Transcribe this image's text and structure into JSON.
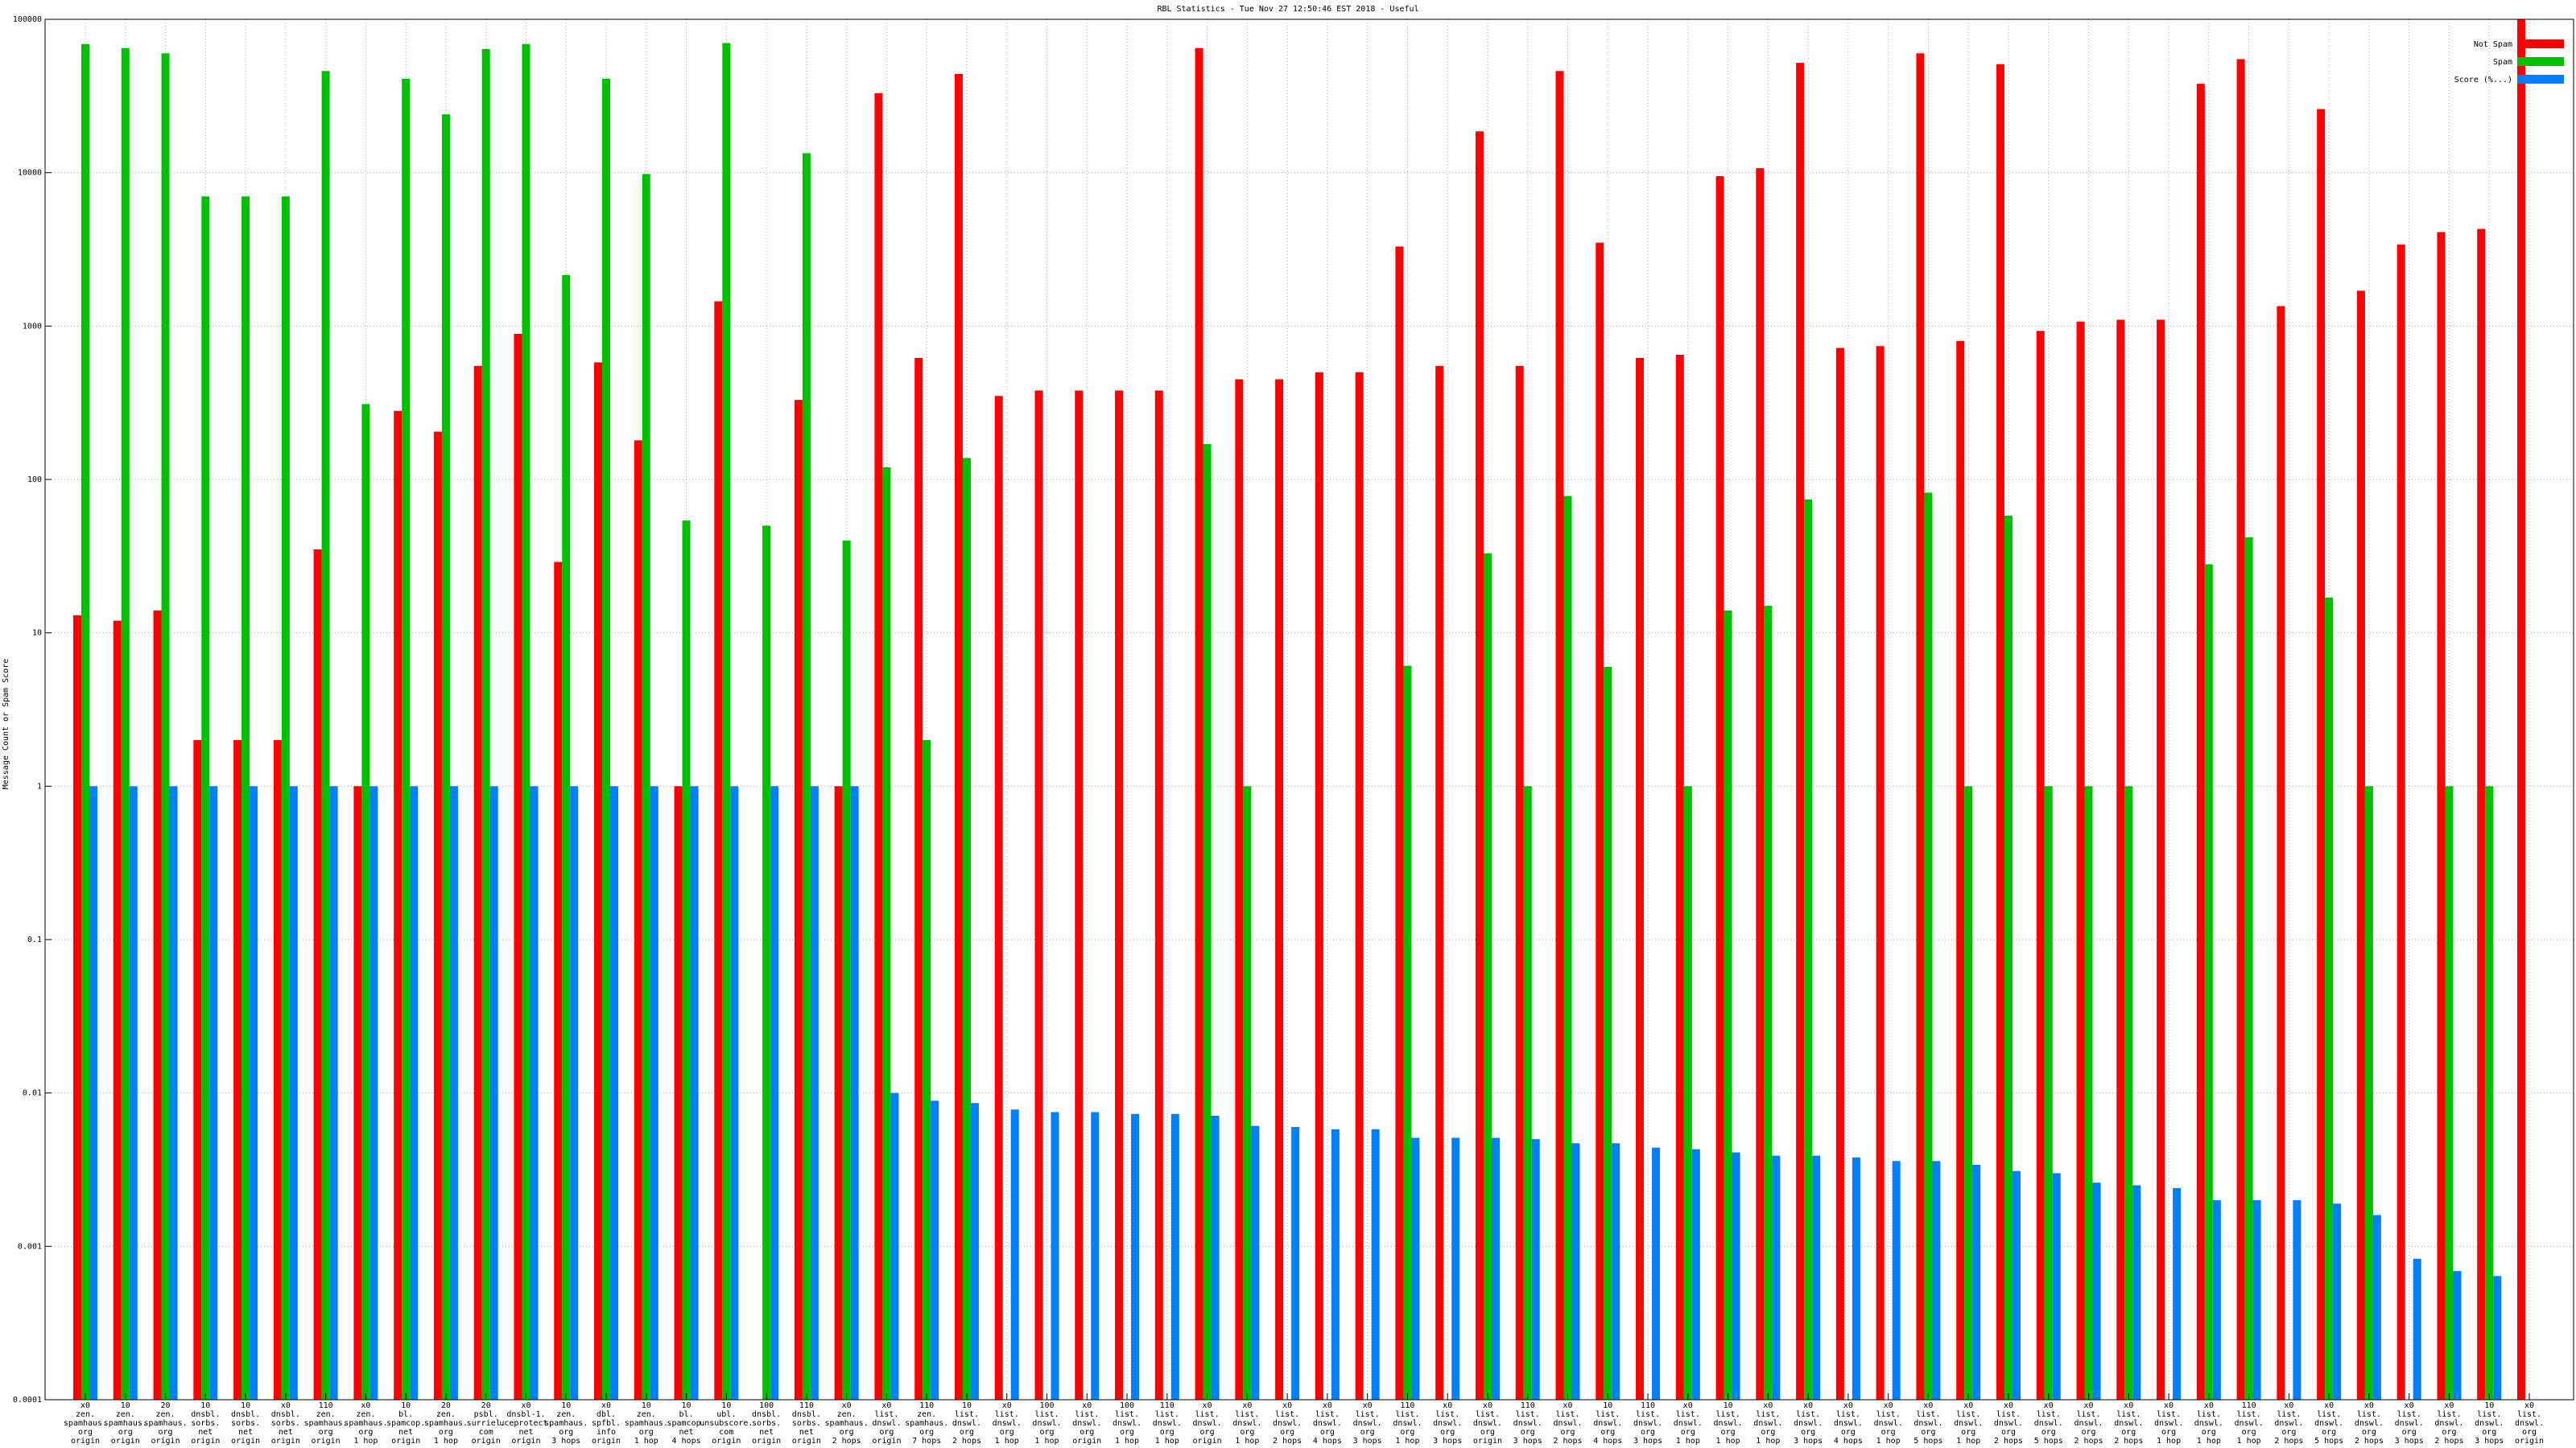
{
  "chart_data": {
    "type": "bar",
    "title": "RBL Statistics - Tue Nov 27 12:50:46 EST 2018 - Useful",
    "y_label": "Message Count or Spam Score",
    "log_scale": true,
    "grid": true,
    "legend": "top-right",
    "ylim": [
      0.0001,
      100000
    ],
    "yticks": [
      0.0001,
      0.001,
      0.01,
      0.1,
      1,
      10,
      100,
      1000,
      10000,
      100000
    ],
    "categories": [
      [
        "x0",
        "zen.",
        "spamhaus.",
        "org",
        "origin"
      ],
      [
        "10",
        "zen.",
        "spamhaus.",
        "org",
        "origin"
      ],
      [
        "20",
        "zen.",
        "spamhaus.",
        "org",
        "origin"
      ],
      [
        "10",
        "dnsbl.",
        "sorbs.",
        "net",
        "origin"
      ],
      [
        "10",
        "dnsbl.",
        "sorbs.",
        "net",
        "origin"
      ],
      [
        "x0",
        "dnsbl.",
        "sorbs.",
        "net",
        "origin"
      ],
      [
        "110",
        "zen.",
        "spamhaus.",
        "org",
        "origin"
      ],
      [
        "x0",
        "zen.",
        "spamhaus.",
        "org",
        "1 hop"
      ],
      [
        "10",
        "bl.",
        "spamcop.",
        "net",
        "origin"
      ],
      [
        "20",
        "zen.",
        "spamhaus.",
        "org",
        "1 hop"
      ],
      [
        "20",
        "psbl.",
        "surriel.",
        "com",
        "origin"
      ],
      [
        "x0",
        "dnsbl-1.",
        "uceprotect.",
        "net",
        "origin"
      ],
      [
        "10",
        "zen.",
        "spamhaus.",
        "org",
        "3 hops"
      ],
      [
        "x0",
        "dbl.",
        "spfbl.",
        "info",
        "origin"
      ],
      [
        "10",
        "zen.",
        "spamhaus.",
        "org",
        "1 hop"
      ],
      [
        "10",
        "bl.",
        "spamcop.",
        "net",
        "4 hops"
      ],
      [
        "10",
        "ubl.",
        "unsubscore.",
        "com",
        "origin"
      ],
      [
        "100",
        "dnsbl.",
        "sorbs.",
        "net",
        "origin"
      ],
      [
        "110",
        "dnsbl.",
        "sorbs.",
        "net",
        "origin"
      ],
      [
        "x0",
        "zen.",
        "spamhaus.",
        "org",
        "2 hops"
      ],
      [
        "x0",
        "list.",
        "dnswl.",
        "org",
        "origin"
      ],
      [
        "110",
        "zen.",
        "spamhaus.",
        "org",
        "7 hops"
      ],
      [
        "10",
        "list.",
        "dnswl.",
        "org",
        "2 hops"
      ],
      [
        "x0",
        "list.",
        "dnswl.",
        "org",
        "1 hop"
      ],
      [
        "100",
        "list.",
        "dnswl.",
        "org",
        "1 hop"
      ],
      [
        "x0",
        "list.",
        "dnswl.",
        "org",
        "origin"
      ],
      [
        "100",
        "list.",
        "dnswl.",
        "org",
        "1 hop"
      ],
      [
        "110",
        "list.",
        "dnswl.",
        "org",
        "1 hop"
      ],
      [
        "x0",
        "list.",
        "dnswl.",
        "org",
        "origin"
      ],
      [
        "x0",
        "list.",
        "dnswl.",
        "org",
        "1 hop"
      ],
      [
        "x0",
        "list.",
        "dnswl.",
        "org",
        "2 hops"
      ],
      [
        "x0",
        "list.",
        "dnswl.",
        "org",
        "4 hops"
      ],
      [
        "x0",
        "list.",
        "dnswl.",
        "org",
        "3 hops"
      ],
      [
        "110",
        "list.",
        "dnswl.",
        "org",
        "1 hop"
      ],
      [
        "x0",
        "list.",
        "dnswl.",
        "org",
        "3 hops"
      ],
      [
        "x0",
        "list.",
        "dnswl.",
        "org",
        "origin"
      ],
      [
        "110",
        "list.",
        "dnswl.",
        "org",
        "3 hops"
      ],
      [
        "x0",
        "list.",
        "dnswl.",
        "org",
        "2 hops"
      ],
      [
        "10",
        "list.",
        "dnswl.",
        "org",
        "4 hops"
      ],
      [
        "110",
        "list.",
        "dnswl.",
        "org",
        "3 hops"
      ],
      [
        "x0",
        "list.",
        "dnswl.",
        "org",
        "1 hop"
      ],
      [
        "10",
        "list.",
        "dnswl.",
        "org",
        "1 hop"
      ],
      [
        "x0",
        "list.",
        "dnswl.",
        "org",
        "1 hop"
      ],
      [
        "x0",
        "list.",
        "dnswl.",
        "org",
        "3 hops"
      ],
      [
        "x0",
        "list.",
        "dnswl.",
        "org",
        "4 hops"
      ],
      [
        "x0",
        "list.",
        "dnswl.",
        "org",
        "1 hop"
      ],
      [
        "x0",
        "list.",
        "dnswl.",
        "org",
        "5 hops"
      ],
      [
        "x0",
        "list.",
        "dnswl.",
        "org",
        "1 hop"
      ],
      [
        "x0",
        "list.",
        "dnswl.",
        "org",
        "2 hops"
      ],
      [
        "x0",
        "list.",
        "dnswl.",
        "org",
        "5 hops"
      ],
      [
        "x0",
        "list.",
        "dnswl.",
        "org",
        "2 hops"
      ],
      [
        "x0",
        "list.",
        "dnswl.",
        "org",
        "2 hops"
      ],
      [
        "x0",
        "list.",
        "dnswl.",
        "org",
        "1 hop"
      ],
      [
        "x0",
        "list.",
        "dnswl.",
        "org",
        "1 hop"
      ],
      [
        "110",
        "list.",
        "dnswl.",
        "org",
        "1 hop"
      ],
      [
        "x0",
        "list.",
        "dnswl.",
        "org",
        "2 hops"
      ],
      [
        "x0",
        "list.",
        "dnswl.",
        "org",
        "5 hops"
      ],
      [
        "x0",
        "list.",
        "dnswl.",
        "org",
        "2 hops"
      ],
      [
        "x0",
        "list.",
        "dnswl.",
        "org",
        "3 hops"
      ],
      [
        "x0",
        "list.",
        "dnswl.",
        "org",
        "2 hops"
      ],
      [
        "10",
        "list.",
        "dnswl.",
        "org",
        "3 hops"
      ],
      [
        "x0",
        "list.",
        "dnswl.",
        "org",
        "origin"
      ]
    ],
    "series": [
      {
        "name": "Not Spam",
        "color": "#ff0000",
        "values": [
          13,
          12,
          14,
          2,
          2,
          2,
          35,
          1,
          280,
          205,
          550,
          890,
          29,
          580,
          180,
          1,
          1450,
          null,
          330,
          1,
          33000,
          620,
          44000,
          350,
          380,
          380,
          380,
          380,
          65000,
          450,
          450,
          500,
          500,
          3300,
          550,
          18600,
          550,
          46000,
          3500,
          620,
          650,
          9500,
          10700,
          52000,
          720,
          740,
          60000,
          800,
          51000,
          930,
          1070,
          1100,
          1100,
          38000,
          55000,
          1350,
          26000,
          1700,
          3400,
          4100,
          4300,
          100000
        ]
      },
      {
        "name": "Spam",
        "color": "#00c000",
        "values": [
          69000,
          65000,
          60000,
          7000,
          7000,
          7000,
          46000,
          310,
          41000,
          24000,
          64000,
          69000,
          2150,
          41000,
          9800,
          54,
          70000,
          50,
          13400,
          40,
          120,
          2,
          138,
          null,
          null,
          null,
          null,
          null,
          170,
          1,
          null,
          null,
          null,
          6.1,
          null,
          33,
          1,
          78,
          6,
          null,
          1,
          14,
          15,
          74,
          null,
          null,
          82,
          1,
          58,
          1,
          1,
          1,
          null,
          28,
          42,
          null,
          17,
          1,
          null,
          1,
          1,
          null
        ]
      },
      {
        "name": "Score (%...)",
        "color": "#0080ff",
        "values": [
          1,
          1,
          1,
          1,
          1,
          1,
          1,
          1,
          1,
          1,
          1,
          1,
          1,
          1,
          1,
          1,
          1,
          1,
          1,
          1,
          0.01,
          0.0089,
          0.0086,
          0.0078,
          0.0075,
          0.0075,
          0.0073,
          0.0073,
          0.0071,
          0.0061,
          0.006,
          0.0058,
          0.0058,
          0.0051,
          0.0051,
          0.0051,
          0.005,
          0.0047,
          0.0047,
          0.0044,
          0.0043,
          0.0041,
          0.0039,
          0.0039,
          0.0038,
          0.0036,
          0.0036,
          0.0034,
          0.0031,
          0.003,
          0.0026,
          0.0025,
          0.0024,
          0.002,
          0.002,
          0.002,
          0.0019,
          0.0016,
          0.00083,
          0.00069,
          0.00064,
          null
        ]
      }
    ]
  }
}
